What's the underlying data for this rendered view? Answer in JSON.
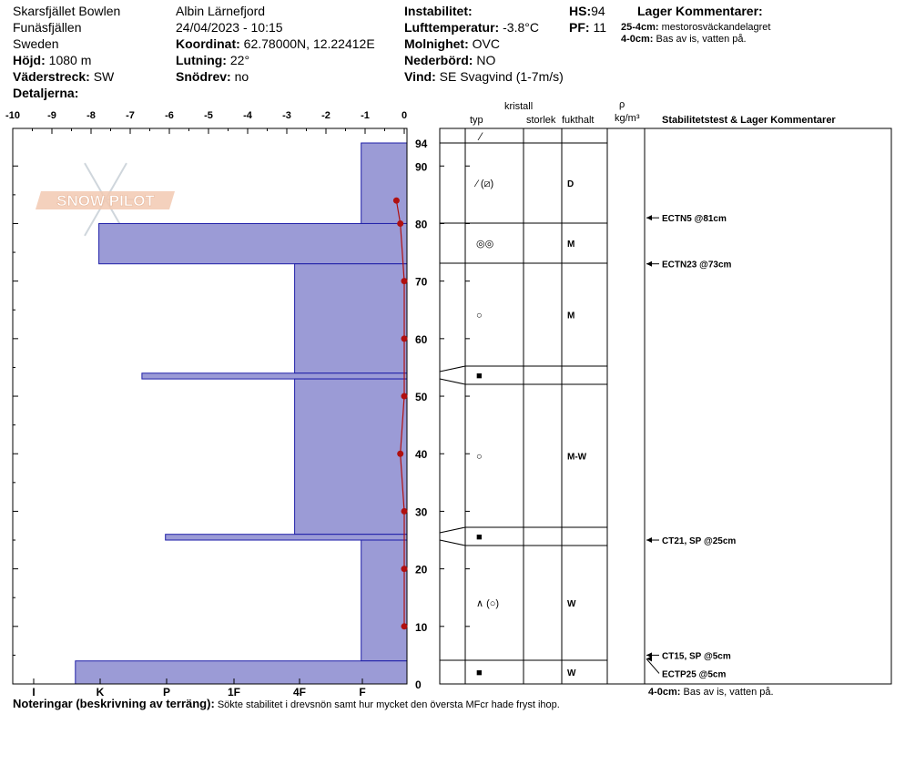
{
  "header": {
    "location": "Skarsfjället Bowlen",
    "region": "Funäsfjällen",
    "country": "Sweden",
    "elevation_label": "Höjd:",
    "elevation": "1080 m",
    "aspect_label": "Väderstreck:",
    "aspect": "SW",
    "details_label": "Detaljerna:",
    "observer": "Albin  Lärnefjord",
    "datetime": "24/04/2023 - 10:15",
    "coord_label": "Koordinat:",
    "coord": "62.78000N, 12.22412E",
    "slope_label": "Lutning:",
    "slope": "22°",
    "drift_label": "Snödrev:",
    "drift": "no",
    "instability_label": "Instabilitet:",
    "instability": "",
    "airtemp_label": "Lufttemperatur:",
    "airtemp": "-3.8°C",
    "sky_label": "Molnighet:",
    "sky": "OVC",
    "precip_label": "Nederbörd:",
    "precip": "NO",
    "wind_label": "Vind:",
    "wind": "SE  Svagvind (1-7m/s)",
    "hs_label": "HS:",
    "hs": "94",
    "pf_label": "PF:",
    "pf": "11",
    "layer_comments_label": "Lager Kommentarer:",
    "layer_comments": [
      {
        "range": "25-4cm:",
        "text": "mestorosväckandelagret"
      },
      {
        "range": "4-0cm:",
        "text": "Bas av is, vatten på."
      }
    ]
  },
  "logo": {
    "text": "SNOW PILOT"
  },
  "columns": {
    "crystal": "kristall",
    "type": "typ",
    "size": "storlek",
    "moisture": "fukthalt",
    "density_symbol": "ρ",
    "density_unit": "kg/m³",
    "stability": "Stabilitetstest & Lager Kommentarer"
  },
  "footer": {
    "notes_label": "Noteringar (beskrivning av terräng):",
    "notes": "Sökte stabilitet i drevsnön samt hur mycket den översta MFcr hade fryst ihop.",
    "bottom_comment_range": "4-0cm:",
    "bottom_comment": "Bas av is, vatten på."
  },
  "chart_data": {
    "type": "bar",
    "title": "",
    "temp_axis": {
      "min": -10,
      "max": 0,
      "ticks": [
        "-10",
        "-9",
        "-8",
        "-7",
        "-6",
        "-5",
        "-4",
        "-3",
        "-2",
        "-1",
        "0"
      ]
    },
    "height_axis": {
      "min": 0,
      "max": 94,
      "ticks": [
        "94",
        "90",
        "80",
        "70",
        "60",
        "50",
        "40",
        "30",
        "20",
        "10",
        "0"
      ],
      "tick_values": [
        94,
        90,
        80,
        70,
        60,
        50,
        40,
        30,
        20,
        10,
        0
      ]
    },
    "hardness_ticks": [
      "I",
      "K",
      "P",
      "1F",
      "4F",
      "F"
    ],
    "layers": [
      {
        "top": 94,
        "bottom": 80,
        "hardness_temp": -1.1,
        "type": "⁄",
        "moisture": "D"
      },
      {
        "top": 80,
        "bottom": 73,
        "hardness_temp": -7.8,
        "type": "◎◎",
        "moisture": "M"
      },
      {
        "top": 73,
        "bottom": 54,
        "hardness_temp": -2.8,
        "type": "○",
        "moisture": "M"
      },
      {
        "top": 54,
        "bottom": 53,
        "hardness_temp": -6.7,
        "type": "■",
        "moisture": ""
      },
      {
        "top": 53,
        "bottom": 26,
        "hardness_temp": -2.8,
        "type": "○",
        "moisture": "M-W"
      },
      {
        "top": 26,
        "bottom": 25,
        "hardness_temp": -6.1,
        "type": "■",
        "moisture": ""
      },
      {
        "top": 25,
        "bottom": 4,
        "hardness_temp": -1.1,
        "type": "∧ (○)",
        "moisture": "W"
      },
      {
        "top": 4,
        "bottom": 0,
        "hardness_temp": -8.4,
        "type": "■",
        "moisture": "W"
      }
    ],
    "surface_type": "⁄",
    "layer80_type": "⁄ (⧄)",
    "temperature_profile": [
      {
        "depth": 84,
        "temp": -0.2
      },
      {
        "depth": 80,
        "temp": -0.1
      },
      {
        "depth": 70,
        "temp": 0.0
      },
      {
        "depth": 60,
        "temp": 0.0
      },
      {
        "depth": 50,
        "temp": 0.0
      },
      {
        "depth": 40,
        "temp": -0.1
      },
      {
        "depth": 30,
        "temp": 0.0
      },
      {
        "depth": 20,
        "temp": 0.0
      },
      {
        "depth": 10,
        "temp": 0.0
      }
    ],
    "stability_tests": [
      {
        "depth": 81,
        "label": "ECTN5 @81cm"
      },
      {
        "depth": 73,
        "label": "ECTN23 @73cm"
      },
      {
        "depth": 25,
        "label": "CT21, SP @25cm"
      },
      {
        "depth": 5,
        "label": "CT15, SP @5cm"
      },
      {
        "depth": 5,
        "label": "ECTP25 @5cm"
      }
    ]
  }
}
